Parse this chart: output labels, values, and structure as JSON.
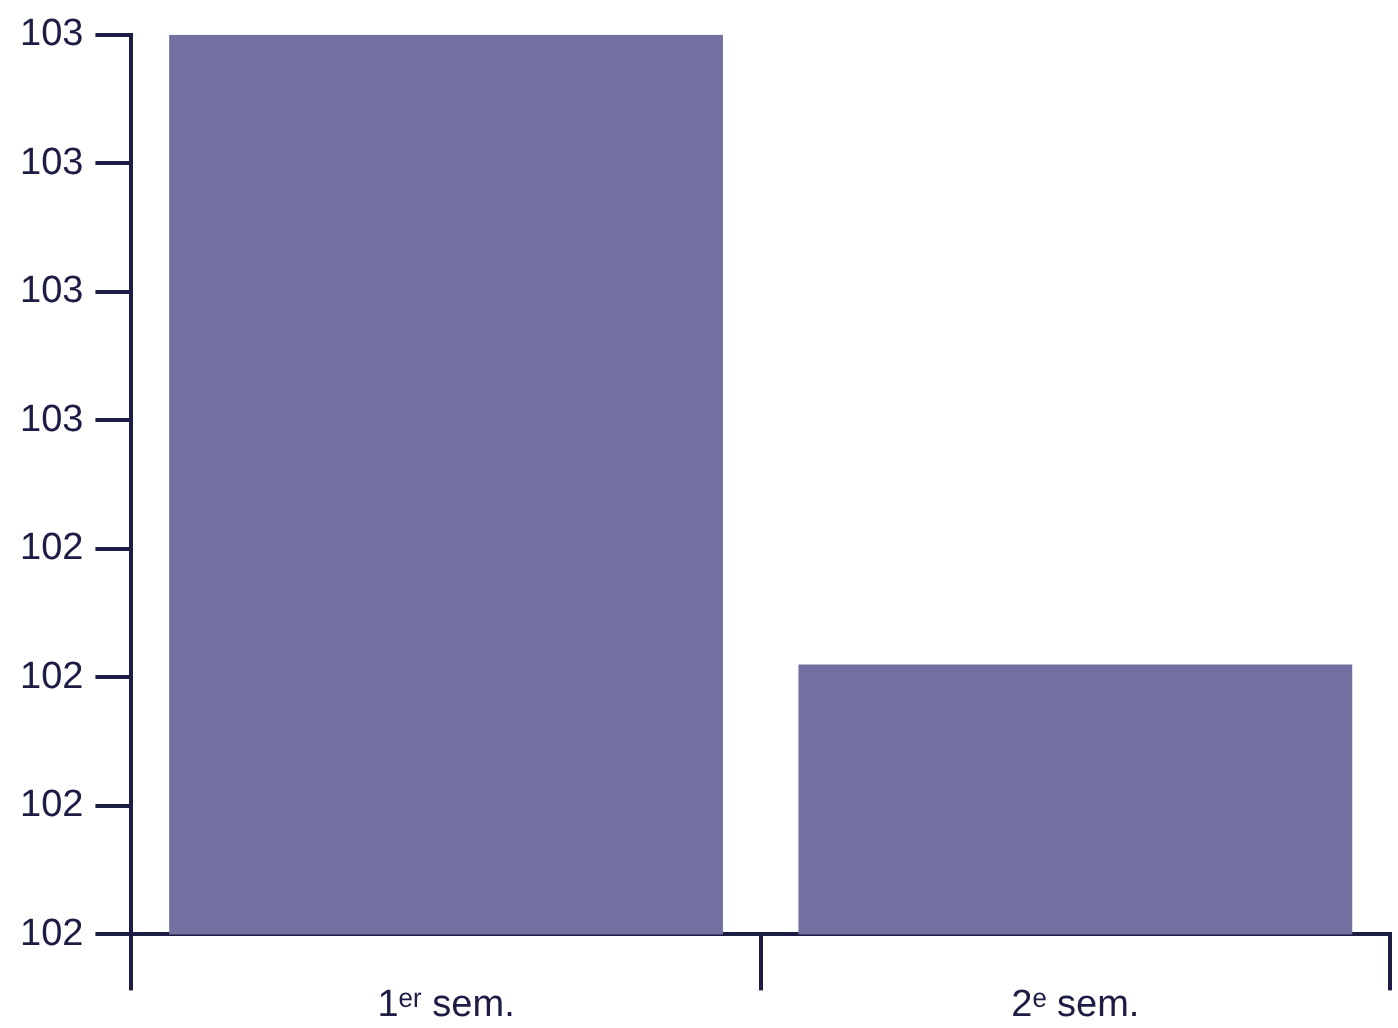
{
  "chart_data": {
    "type": "bar",
    "categories": [
      "1ᵉʳ sem.",
      "2ᵉ sem."
    ],
    "values": [
      102.8,
      102.31
    ],
    "color": "#7170a0",
    "ylim": [
      102.1,
      102.8
    ],
    "yticks": [
      {
        "value": 102.1,
        "label": "102"
      },
      {
        "value": 102.2,
        "label": "102"
      },
      {
        "value": 102.3,
        "label": "102"
      },
      {
        "value": 102.4,
        "label": "102"
      },
      {
        "value": 102.5,
        "label": "103"
      },
      {
        "value": 102.6,
        "label": "103"
      },
      {
        "value": 102.7,
        "label": "103"
      },
      {
        "value": 102.8,
        "label": "103"
      }
    ],
    "grid": false,
    "legend": false
  }
}
